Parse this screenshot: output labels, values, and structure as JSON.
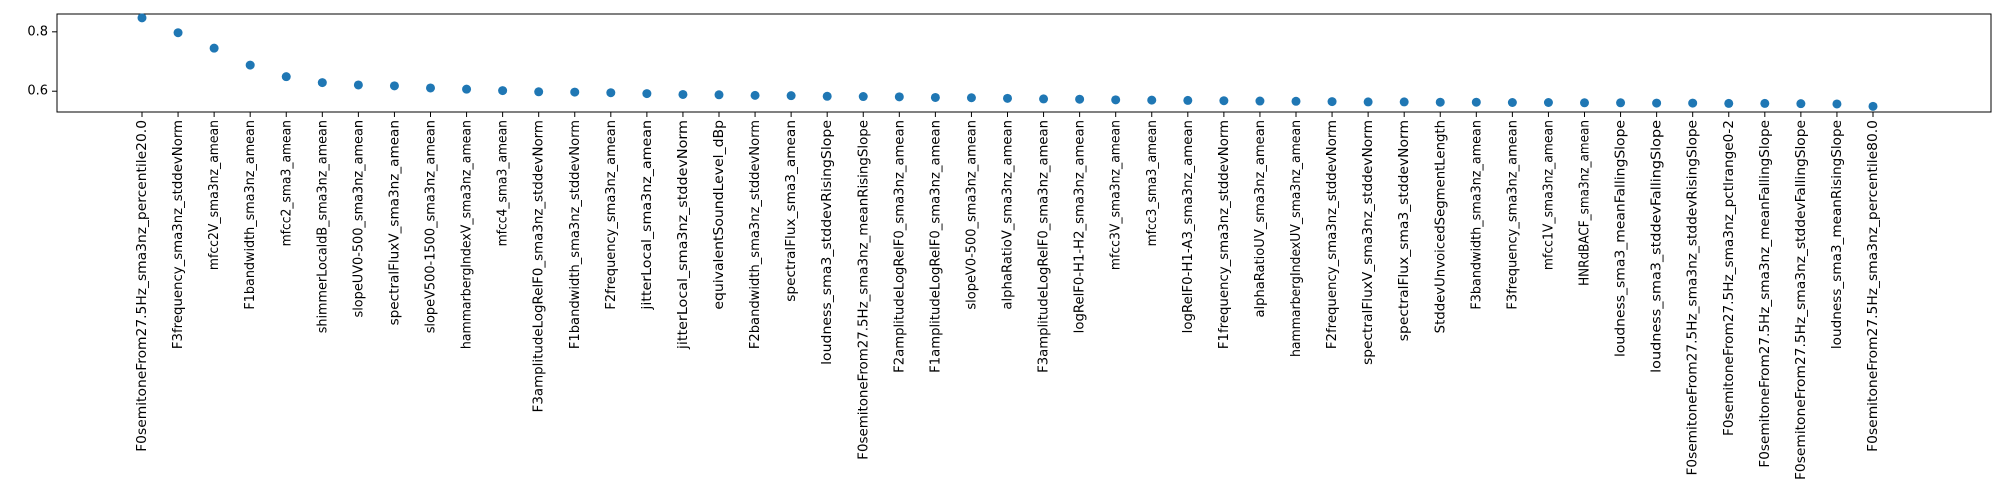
{
  "chart_data": {
    "type": "scatter",
    "title": "",
    "xlabel": "",
    "ylabel": "",
    "ylim": [
      0.53,
      0.86
    ],
    "yticks": [
      0.6,
      0.8
    ],
    "ytick_labels": [
      "0.6",
      "0.8"
    ],
    "grid": false,
    "marker_color": "#1f77b4",
    "categories": [
      "F0semitoneFrom27.5Hz_sma3nz_percentile20.0",
      "F3frequency_sma3nz_stddevNorm",
      "mfcc2V_sma3nz_amean",
      "F1bandwidth_sma3nz_amean",
      "mfcc2_sma3_amean",
      "shimmerLocaldB_sma3nz_amean",
      "slopeUV0-500_sma3nz_amean",
      "spectralFluxV_sma3nz_amean",
      "slopeV500-1500_sma3nz_amean",
      "hammarbergIndexV_sma3nz_amean",
      "mfcc4_sma3_amean",
      "F3amplitudeLogRelF0_sma3nz_stddevNorm",
      "F1bandwidth_sma3nz_stddevNorm",
      "F2frequency_sma3nz_amean",
      "jitterLocal_sma3nz_amean",
      "jitterLocal_sma3nz_stddevNorm",
      "equivalentSoundLevel_dBp",
      "F2bandwidth_sma3nz_stddevNorm",
      "spectralFlux_sma3_amean",
      "loudness_sma3_stddevRisingSlope",
      "F0semitoneFrom27.5Hz_sma3nz_meanRisingSlope",
      "F2amplitudeLogRelF0_sma3nz_amean",
      "F1amplitudeLogRelF0_sma3nz_amean",
      "slopeV0-500_sma3nz_amean",
      "alphaRatioV_sma3nz_amean",
      "F3amplitudeLogRelF0_sma3nz_amean",
      "logRelF0-H1-H2_sma3nz_amean",
      "mfcc3V_sma3nz_amean",
      "mfcc3_sma3_amean",
      "logRelF0-H1-A3_sma3nz_amean",
      "F1frequency_sma3nz_stddevNorm",
      "alphaRatioUV_sma3nz_amean",
      "hammarbergIndexUV_sma3nz_amean",
      "F2frequency_sma3nz_stddevNorm",
      "spectralFluxV_sma3nz_stddevNorm",
      "spectralFlux_sma3_stddevNorm",
      "StddevUnvoicedSegmentLength",
      "F3bandwidth_sma3nz_amean",
      "F3frequency_sma3nz_amean",
      "mfcc1V_sma3nz_amean",
      "HNRdBACF_sma3nz_amean",
      "loudness_sma3_meanFallingSlope",
      "loudness_sma3_stddevFallingSlope",
      "F0semitoneFrom27.5Hz_sma3nz_stddevRisingSlope",
      "F0semitoneFrom27.5Hz_sma3nz_pctlrange0-2",
      "F0semitoneFrom27.5Hz_sma3nz_meanFallingSlope",
      "F0semitoneFrom27.5Hz_sma3nz_stddevFallingSlope",
      "loudness_sma3_meanRisingSlope",
      "F0semitoneFrom27.5Hz_sma3nz_percentile80.0"
    ],
    "values": [
      0.847,
      0.797,
      0.745,
      0.688,
      0.649,
      0.629,
      0.621,
      0.618,
      0.611,
      0.607,
      0.602,
      0.598,
      0.597,
      0.595,
      0.592,
      0.589,
      0.588,
      0.586,
      0.585,
      0.583,
      0.582,
      0.581,
      0.579,
      0.578,
      0.576,
      0.574,
      0.573,
      0.571,
      0.57,
      0.569,
      0.568,
      0.567,
      0.566,
      0.565,
      0.564,
      0.564,
      0.563,
      0.563,
      0.562,
      0.562,
      0.561,
      0.561,
      0.56,
      0.56,
      0.559,
      0.559,
      0.558,
      0.557,
      0.549
    ]
  }
}
